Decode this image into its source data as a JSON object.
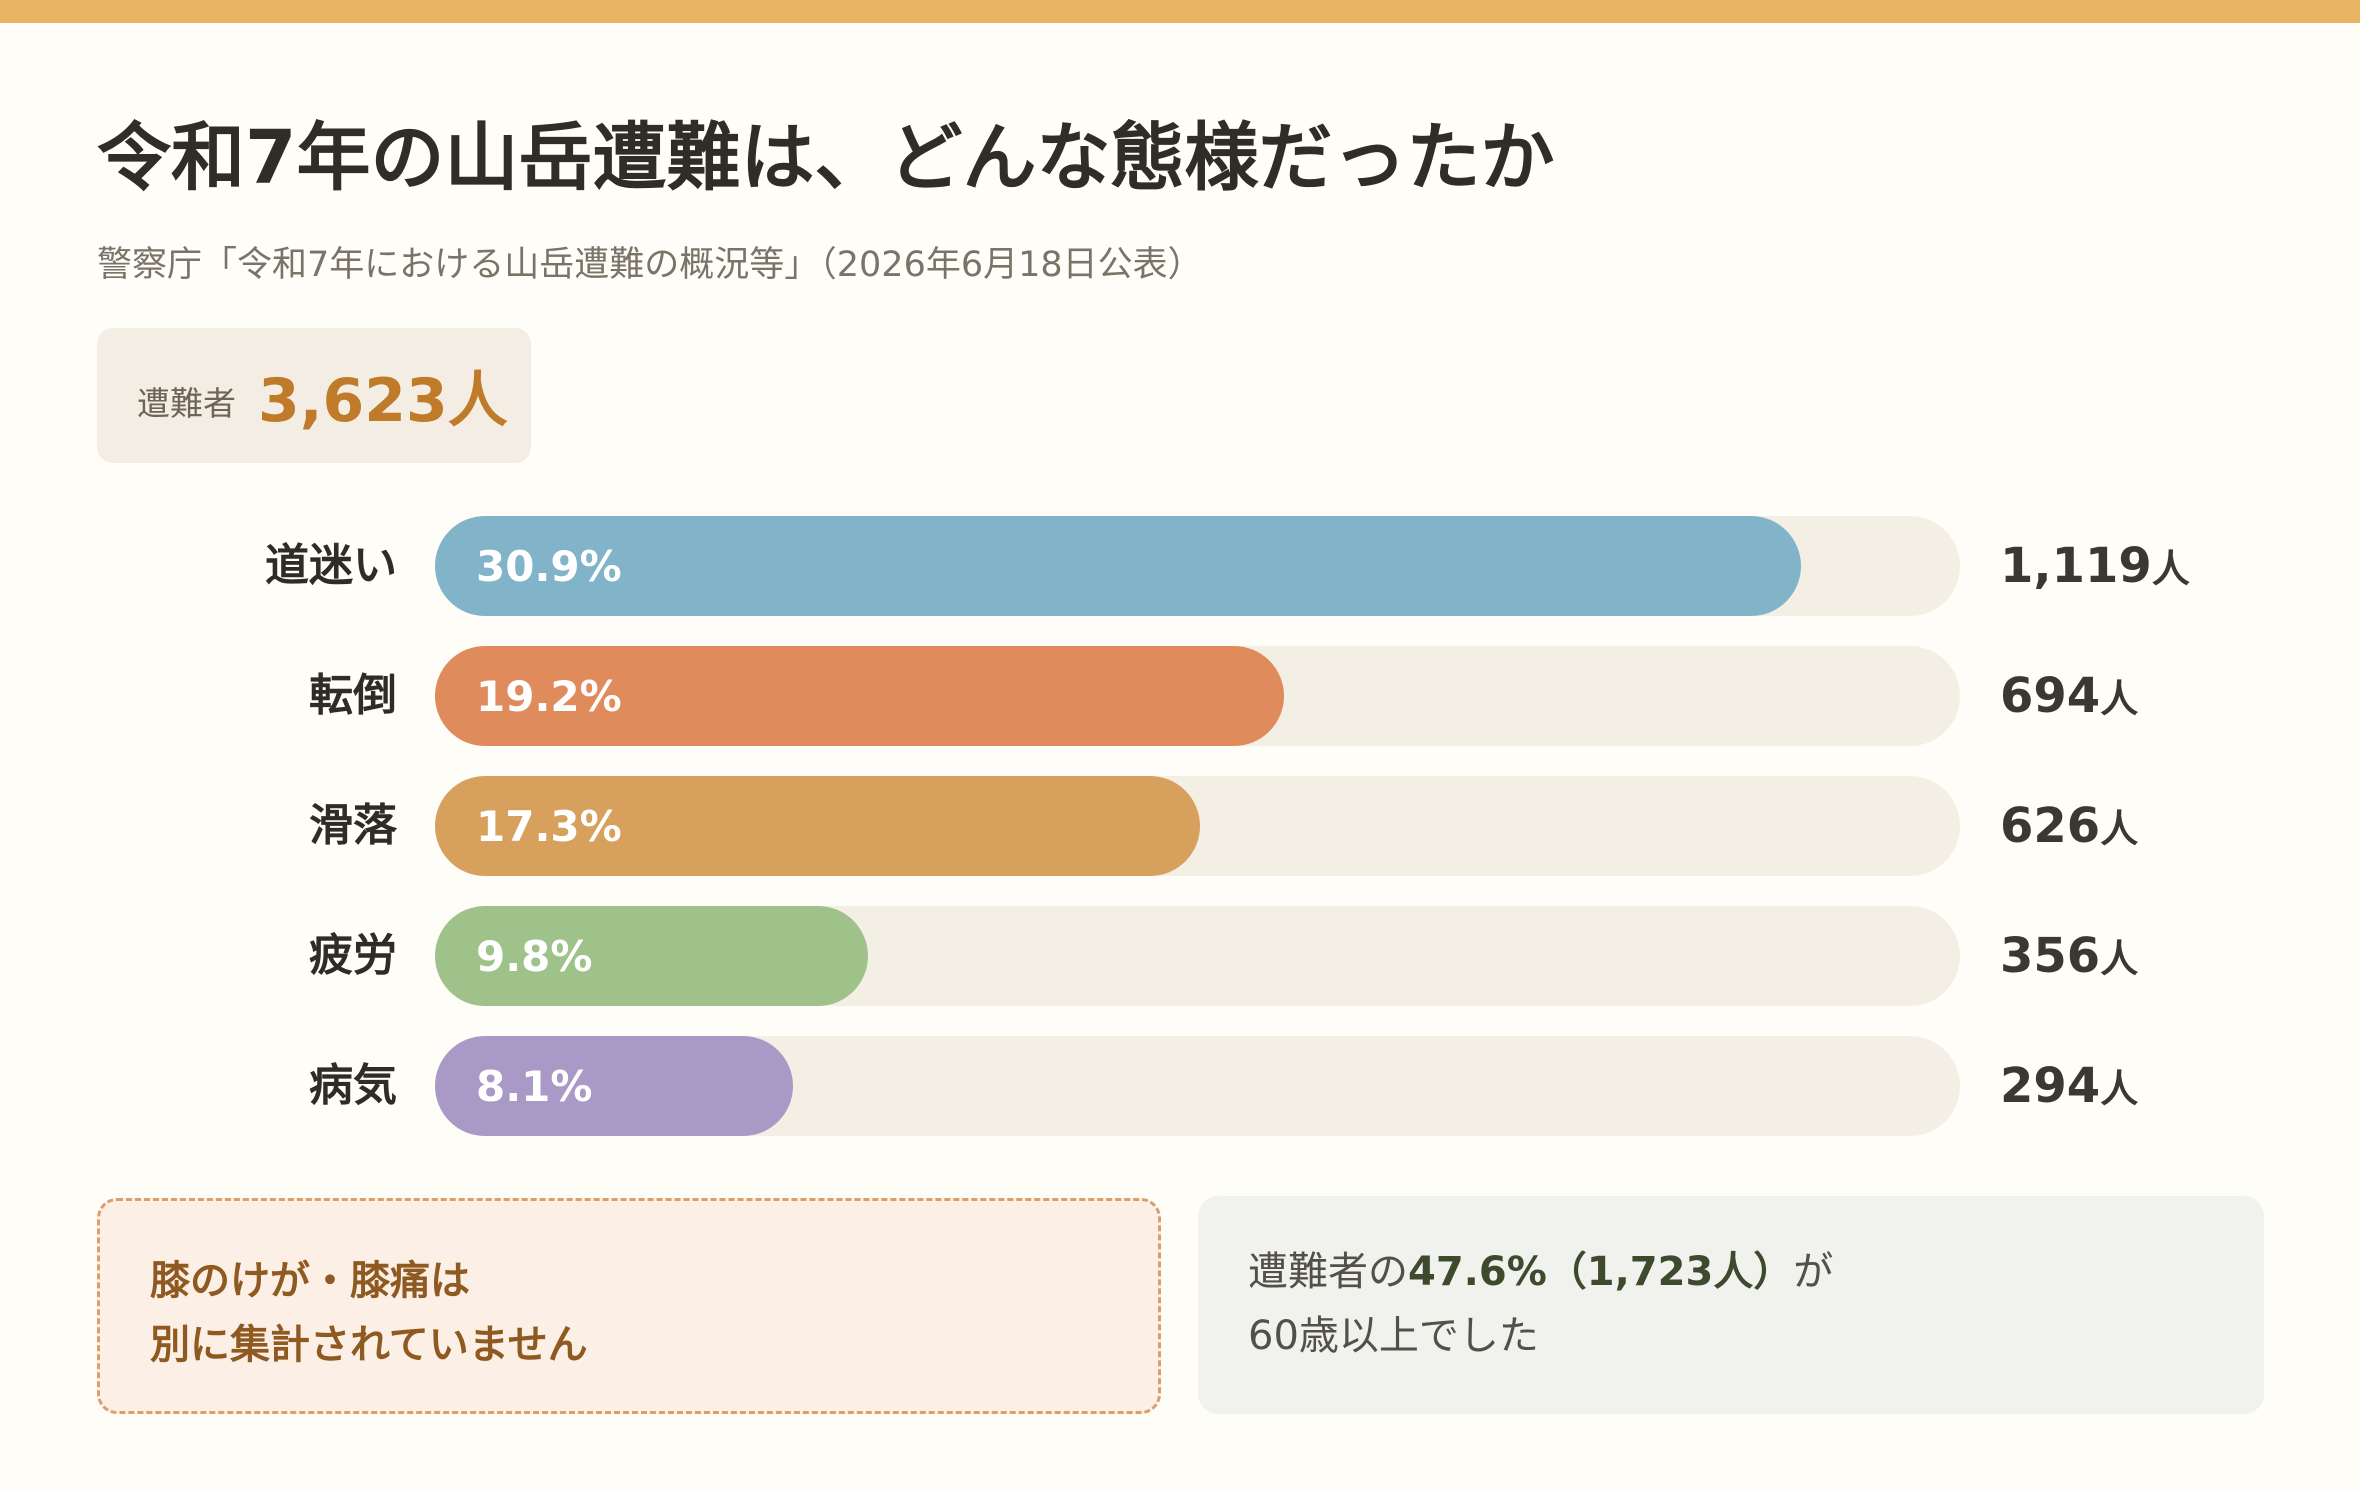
{
  "header": {
    "title": "令和7年の山岳遭難は、どんな態様だったか",
    "subtitle": "警察庁「令和7年における山岳遭難の概況等」（2026年6月18日公表）"
  },
  "total": {
    "label": "遭難者",
    "value": "3,623人"
  },
  "chart_data": {
    "type": "bar",
    "orientation": "horizontal",
    "categories": [
      "道迷い",
      "転倒",
      "滑落",
      "疲労",
      "病気"
    ],
    "percent_labels": [
      "30.9%",
      "19.2%",
      "17.3%",
      "9.8%",
      "8.1%"
    ],
    "values": [
      30.9,
      19.2,
      17.3,
      9.8,
      8.1
    ],
    "counts": [
      "1,119",
      "694",
      "626",
      "356",
      "294"
    ],
    "count_unit": "人",
    "xlim": [
      0,
      34.5
    ],
    "colors": [
      "#81b3c9",
      "#df8b5b",
      "#d8a05d",
      "#9fc18a",
      "#a899c6"
    ],
    "track_color": "#f4efe5"
  },
  "notes": {
    "left": {
      "line1": "膝のけが・膝痛は",
      "line2": "別に集計されていません"
    },
    "right": {
      "pre": "遭難者の",
      "highlight": "47.6%（1,723人）",
      "post": "が",
      "line2": "60歳以上でした"
    }
  },
  "colors": {
    "accent_stripe": "#e8b464",
    "total_value": "#bf7a2a",
    "note_left_text": "#8f5a22"
  }
}
